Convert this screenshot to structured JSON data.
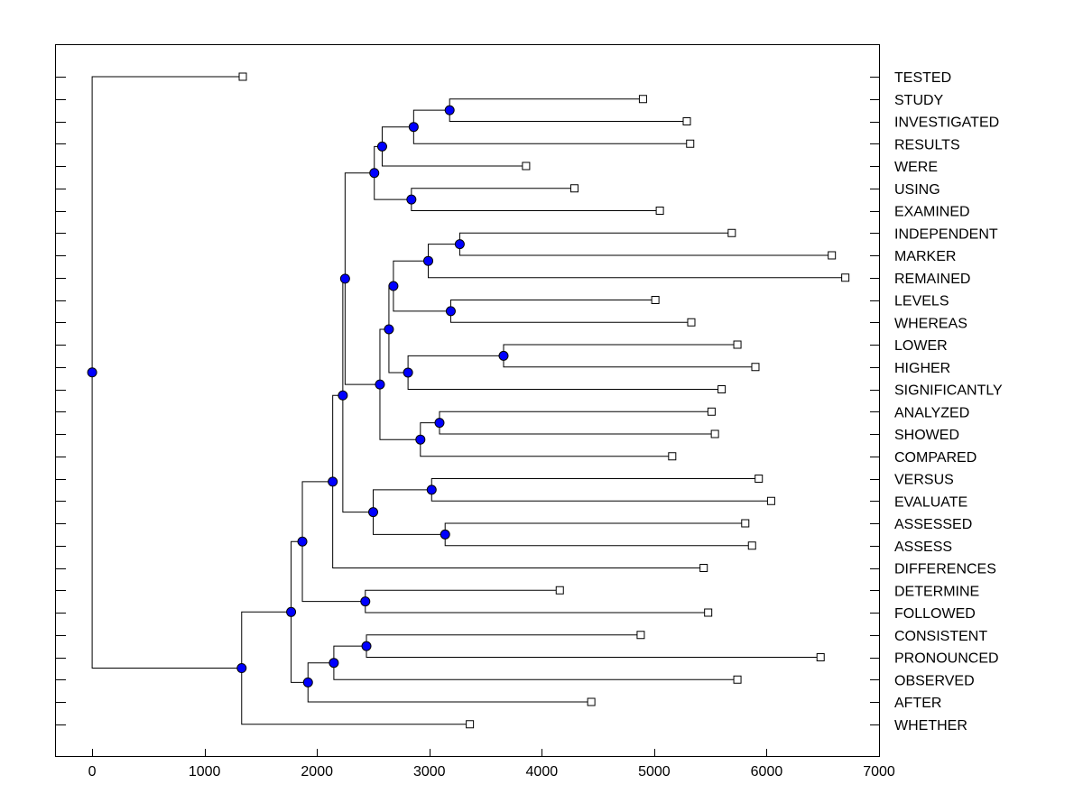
{
  "chart_data": {
    "type": "dendrogram",
    "xlim": [
      -330,
      7000
    ],
    "x_ticks": [
      0,
      1000,
      2000,
      3000,
      4000,
      5000,
      6000,
      7000
    ],
    "x_tick_labels": [
      "0",
      "1000",
      "2000",
      "3000",
      "4000",
      "5000",
      "6000",
      "7000"
    ],
    "node_color": "#0000ff",
    "leaves": [
      {
        "label": "TESTED",
        "x": 1340
      },
      {
        "label": "STUDY",
        "x": 4900
      },
      {
        "label": "INVESTIGATED",
        "x": 5290
      },
      {
        "label": "RESULTS",
        "x": 5320
      },
      {
        "label": "WERE",
        "x": 3860
      },
      {
        "label": "USING",
        "x": 4290
      },
      {
        "label": "EXAMINED",
        "x": 5050
      },
      {
        "label": "INDEPENDENT",
        "x": 5690
      },
      {
        "label": "MARKER",
        "x": 6580
      },
      {
        "label": "REMAINED",
        "x": 6700
      },
      {
        "label": "LEVELS",
        "x": 5010
      },
      {
        "label": "WHEREAS",
        "x": 5330
      },
      {
        "label": "LOWER",
        "x": 5740
      },
      {
        "label": "HIGHER",
        "x": 5900
      },
      {
        "label": "SIGNIFICANTLY",
        "x": 5600
      },
      {
        "label": "ANALYZED",
        "x": 5510
      },
      {
        "label": "SHOWED",
        "x": 5540
      },
      {
        "label": "COMPARED",
        "x": 5160
      },
      {
        "label": "VERSUS",
        "x": 5930
      },
      {
        "label": "EVALUATE",
        "x": 6040
      },
      {
        "label": "ASSESSED",
        "x": 5810
      },
      {
        "label": "ASSESS",
        "x": 5870
      },
      {
        "label": "DIFFERENCES",
        "x": 5440
      },
      {
        "label": "DETERMINE",
        "x": 4160
      },
      {
        "label": "FOLLOWED",
        "x": 5480
      },
      {
        "label": "CONSISTENT",
        "x": 4880
      },
      {
        "label": "PRONOUNCED",
        "x": 6480
      },
      {
        "label": "OBSERVED",
        "x": 5740
      },
      {
        "label": "AFTER",
        "x": 4440
      },
      {
        "label": "WHETHER",
        "x": 3360
      }
    ],
    "merges": [
      {
        "left": 1,
        "right": 2,
        "x": 3180
      },
      {
        "left": "m0",
        "right": 3,
        "x": 2860
      },
      {
        "left": "m1",
        "right": 4,
        "x": 2580
      },
      {
        "left": 5,
        "right": 6,
        "x": 2840
      },
      {
        "left": "m2",
        "right": "m3",
        "x": 2510
      },
      {
        "left": 7,
        "right": 8,
        "x": 3270
      },
      {
        "left": "m5",
        "right": 9,
        "x": 2990
      },
      {
        "left": 10,
        "right": 11,
        "x": 3190
      },
      {
        "left": "m6",
        "right": "m7",
        "x": 2680
      },
      {
        "left": 12,
        "right": 13,
        "x": 3660
      },
      {
        "left": "m9",
        "right": 14,
        "x": 2810
      },
      {
        "left": "m8",
        "right": "m10",
        "x": 2640
      },
      {
        "left": 15,
        "right": 16,
        "x": 3090
      },
      {
        "left": "m12",
        "right": 17,
        "x": 2920
      },
      {
        "left": "m11",
        "right": "m13",
        "x": 2560
      },
      {
        "left": "m4",
        "right": "m14",
        "x": 2250
      },
      {
        "left": 18,
        "right": 19,
        "x": 3020
      },
      {
        "left": 20,
        "right": 21,
        "x": 3140
      },
      {
        "left": "m16",
        "right": "m17",
        "x": 2500
      },
      {
        "left": "m15",
        "right": "m18",
        "x": 2230
      },
      {
        "left": "m19",
        "right": 22,
        "x": 2140
      },
      {
        "left": 23,
        "right": 24,
        "x": 2430
      },
      {
        "left": "m20",
        "right": "m21",
        "x": 1870
      },
      {
        "left": 25,
        "right": 26,
        "x": 2440
      },
      {
        "left": "m23",
        "right": 27,
        "x": 2150
      },
      {
        "left": "m24",
        "right": 28,
        "x": 1920
      },
      {
        "left": "m22",
        "right": "m25",
        "x": 1770
      },
      {
        "left": "m26",
        "right": 29,
        "x": 1330
      },
      {
        "left": 0,
        "right": "m27",
        "x": 0
      }
    ]
  }
}
